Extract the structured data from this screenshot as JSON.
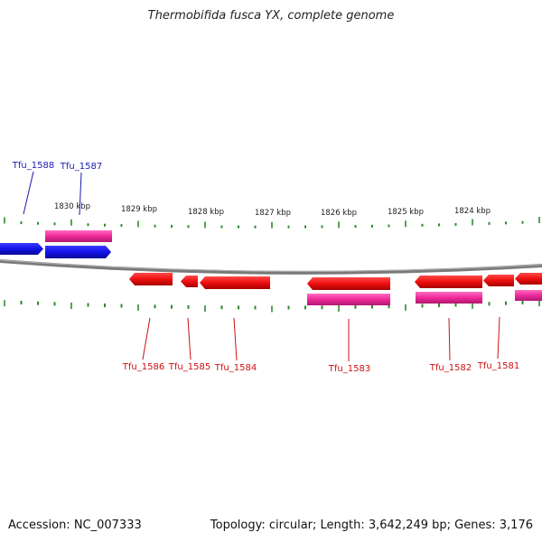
{
  "title": "Thermobifida fusca YX, complete genome",
  "footer": {
    "accession": "Accession: NC_007333",
    "topology": "Topology: circular; Length: 3,642,249 bp; Genes: 3,176"
  },
  "colors": {
    "backbone": "#7a7a7a",
    "tick": "#2e8b2e",
    "gene_forward": "#1a1aee",
    "gene_reverse": "#ee1111",
    "cds_band": "#ee2a9a",
    "label_forward": "#1a1ab0",
    "label_reverse": "#cc1111"
  },
  "scale": [
    {
      "label": "1830 kbp",
      "kbp": 1830
    },
    {
      "label": "1829 kbp",
      "kbp": 1829
    },
    {
      "label": "1828 kbp",
      "kbp": 1828
    },
    {
      "label": "1827 kbp",
      "kbp": 1827
    },
    {
      "label": "1826 kbp",
      "kbp": 1826
    },
    {
      "label": "1825 kbp",
      "kbp": 1825
    },
    {
      "label": "1824 kbp",
      "kbp": 1824
    }
  ],
  "genes": [
    {
      "id": "Tfu_1588",
      "strand": "+"
    },
    {
      "id": "Tfu_1587",
      "strand": "+"
    },
    {
      "id": "Tfu_1586",
      "strand": "-"
    },
    {
      "id": "Tfu_1585",
      "strand": "-"
    },
    {
      "id": "Tfu_1584",
      "strand": "-"
    },
    {
      "id": "Tfu_1583",
      "strand": "-"
    },
    {
      "id": "Tfu_1582",
      "strand": "-"
    },
    {
      "id": "Tfu_1581",
      "strand": "-"
    }
  ]
}
